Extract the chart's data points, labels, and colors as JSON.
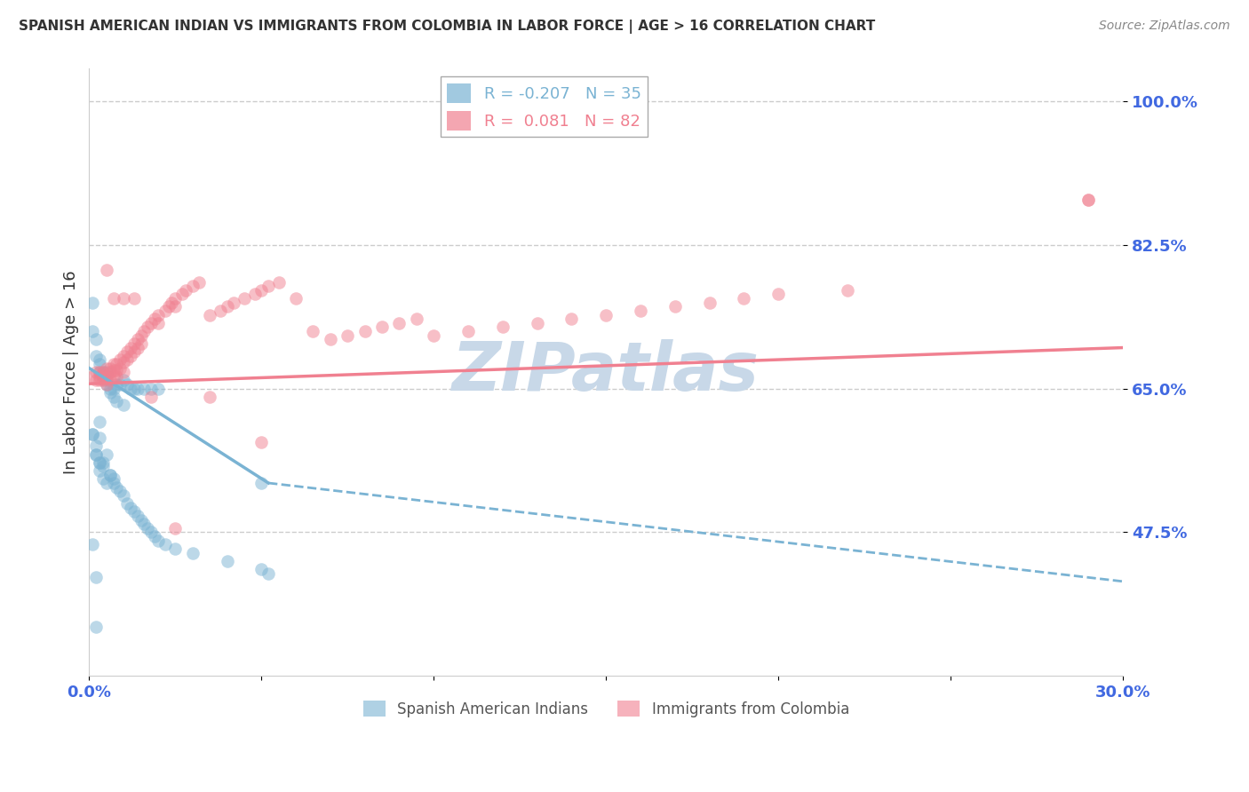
{
  "title": "SPANISH AMERICAN INDIAN VS IMMIGRANTS FROM COLOMBIA IN LABOR FORCE | AGE > 16 CORRELATION CHART",
  "source": "Source: ZipAtlas.com",
  "ylabel": "In Labor Force | Age > 16",
  "xlim": [
    0.0,
    0.3
  ],
  "ylim": [
    0.3,
    1.04
  ],
  "yticks": [
    0.475,
    0.65,
    0.825,
    1.0
  ],
  "ytick_labels": [
    "47.5%",
    "65.0%",
    "82.5%",
    "100.0%"
  ],
  "xticks": [
    0.0,
    0.05,
    0.1,
    0.15,
    0.2,
    0.25,
    0.3
  ],
  "xtick_labels": [
    "0.0%",
    "",
    "",
    "",
    "",
    "",
    "30.0%"
  ],
  "blue_scatter_x": [
    0.001,
    0.001,
    0.002,
    0.002,
    0.003,
    0.003,
    0.003,
    0.004,
    0.004,
    0.005,
    0.005,
    0.005,
    0.006,
    0.006,
    0.007,
    0.007,
    0.008,
    0.008,
    0.009,
    0.01,
    0.01,
    0.011,
    0.012,
    0.013,
    0.014,
    0.016,
    0.018,
    0.02,
    0.05,
    0.001,
    0.002,
    0.003,
    0.004,
    0.006,
    0.007
  ],
  "blue_scatter_y": [
    0.755,
    0.72,
    0.71,
    0.69,
    0.68,
    0.685,
    0.67,
    0.665,
    0.67,
    0.655,
    0.66,
    0.67,
    0.645,
    0.65,
    0.64,
    0.65,
    0.655,
    0.635,
    0.655,
    0.66,
    0.63,
    0.655,
    0.65,
    0.65,
    0.65,
    0.65,
    0.65,
    0.65,
    0.535,
    0.595,
    0.57,
    0.56,
    0.555,
    0.545,
    0.54
  ],
  "blue_scatter_x2": [
    0.001,
    0.002,
    0.002,
    0.003,
    0.003,
    0.004,
    0.005,
    0.006,
    0.007,
    0.008,
    0.009,
    0.01,
    0.011,
    0.012,
    0.013,
    0.014,
    0.015,
    0.016,
    0.017,
    0.018,
    0.019,
    0.02,
    0.022,
    0.025,
    0.03,
    0.04,
    0.05,
    0.052,
    0.001,
    0.002,
    0.002,
    0.003,
    0.003,
    0.004,
    0.005
  ],
  "blue_scatter_y2": [
    0.46,
    0.42,
    0.36,
    0.59,
    0.61,
    0.56,
    0.57,
    0.545,
    0.535,
    0.53,
    0.525,
    0.52,
    0.51,
    0.505,
    0.5,
    0.495,
    0.49,
    0.485,
    0.48,
    0.475,
    0.47,
    0.465,
    0.46,
    0.455,
    0.45,
    0.44,
    0.43,
    0.425,
    0.595,
    0.58,
    0.57,
    0.56,
    0.55,
    0.54,
    0.535
  ],
  "pink_scatter_x": [
    0.001,
    0.002,
    0.002,
    0.003,
    0.003,
    0.003,
    0.004,
    0.004,
    0.004,
    0.005,
    0.005,
    0.005,
    0.006,
    0.006,
    0.006,
    0.007,
    0.007,
    0.007,
    0.008,
    0.008,
    0.008,
    0.009,
    0.009,
    0.01,
    0.01,
    0.01,
    0.011,
    0.011,
    0.012,
    0.012,
    0.013,
    0.013,
    0.014,
    0.014,
    0.015,
    0.015,
    0.016,
    0.017,
    0.018,
    0.019,
    0.02,
    0.02,
    0.022,
    0.023,
    0.024,
    0.025,
    0.025,
    0.027,
    0.028,
    0.03,
    0.032,
    0.035,
    0.038,
    0.04,
    0.042,
    0.045,
    0.048,
    0.05,
    0.052,
    0.055,
    0.06,
    0.065,
    0.07,
    0.075,
    0.08,
    0.085,
    0.09,
    0.095,
    0.1,
    0.11,
    0.12,
    0.13,
    0.14,
    0.15,
    0.16,
    0.17,
    0.18,
    0.19,
    0.2,
    0.22,
    0.29,
    0.29
  ],
  "pink_scatter_y": [
    0.665,
    0.67,
    0.66,
    0.67,
    0.665,
    0.66,
    0.67,
    0.665,
    0.66,
    0.675,
    0.665,
    0.655,
    0.675,
    0.67,
    0.66,
    0.68,
    0.672,
    0.665,
    0.68,
    0.672,
    0.665,
    0.685,
    0.675,
    0.69,
    0.682,
    0.67,
    0.695,
    0.685,
    0.7,
    0.69,
    0.705,
    0.695,
    0.71,
    0.7,
    0.715,
    0.705,
    0.72,
    0.725,
    0.73,
    0.735,
    0.74,
    0.73,
    0.745,
    0.75,
    0.755,
    0.76,
    0.75,
    0.765,
    0.77,
    0.775,
    0.78,
    0.74,
    0.745,
    0.75,
    0.755,
    0.76,
    0.765,
    0.77,
    0.775,
    0.78,
    0.76,
    0.72,
    0.71,
    0.715,
    0.72,
    0.725,
    0.73,
    0.735,
    0.715,
    0.72,
    0.725,
    0.73,
    0.735,
    0.74,
    0.745,
    0.75,
    0.755,
    0.76,
    0.765,
    0.77,
    0.88,
    0.88
  ],
  "pink_extra_x": [
    0.005,
    0.007,
    0.01,
    0.013,
    0.018,
    0.025,
    0.035,
    0.05
  ],
  "pink_extra_y": [
    0.795,
    0.76,
    0.76,
    0.76,
    0.64,
    0.48,
    0.64,
    0.585
  ],
  "blue_line": {
    "x": [
      0.0,
      0.052
    ],
    "y": [
      0.675,
      0.535
    ]
  },
  "blue_dash": {
    "x": [
      0.052,
      0.3
    ],
    "y": [
      0.535,
      0.415
    ]
  },
  "pink_line": {
    "x": [
      0.0,
      0.3
    ],
    "y": [
      0.656,
      0.7
    ]
  },
  "watermark": "ZIPatlas",
  "watermark_color": "#c8d8e8",
  "bg_color": "#ffffff",
  "grid_color": "#cccccc",
  "scatter_size": 110,
  "scatter_alpha": 0.5,
  "blue_color": "#7ab3d3",
  "pink_color": "#f08090",
  "axis_color": "#4169e1",
  "title_color": "#333333",
  "source_color": "#888888"
}
